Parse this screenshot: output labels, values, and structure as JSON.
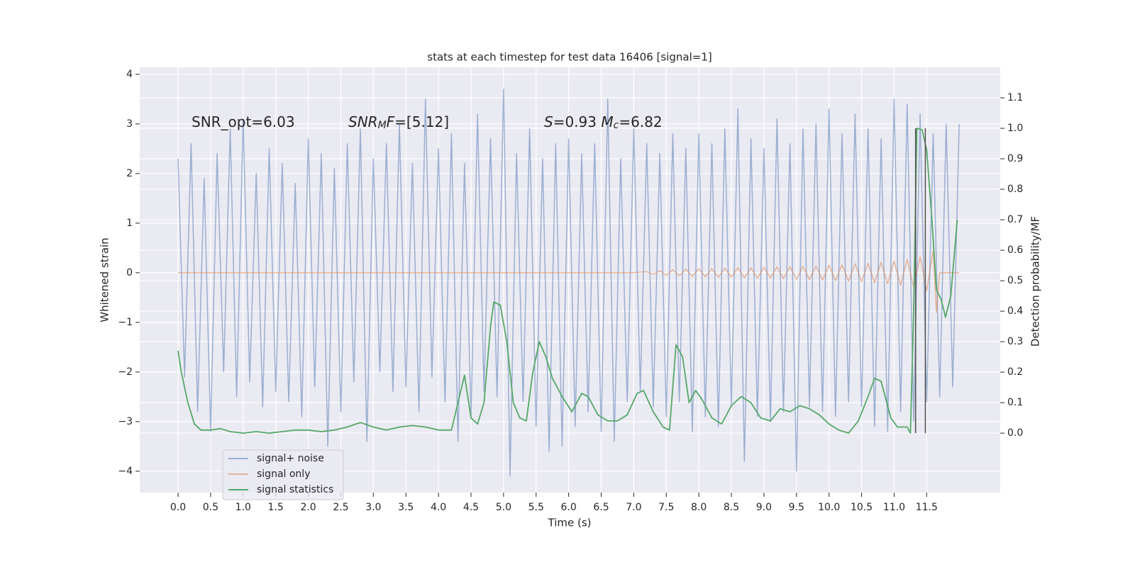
{
  "chart_data": {
    "type": "line",
    "title": "stats at each timestep for test data 16406 [signal=1]",
    "x_label": "Time (s)",
    "y_label": "Whitened strain",
    "y2_label": "Detection probability/MF",
    "xlim": [
      -0.589,
      12.63
    ],
    "ylim": [
      -4.43,
      4.14
    ],
    "y2lim": [
      -0.195,
      1.2
    ],
    "xticks": [
      {
        "value": 0,
        "label": "0.0"
      },
      0.5,
      {
        "value": 1,
        "label": "1.0"
      },
      1.5,
      {
        "value": 2,
        "label": "2.0"
      },
      2.5,
      {
        "value": 3,
        "label": "3.0"
      },
      3.5,
      {
        "value": 4,
        "label": "4.0"
      },
      4.5,
      {
        "value": 5,
        "label": "5.0"
      },
      5.5,
      {
        "value": 6,
        "label": "6.0"
      },
      6.5,
      {
        "value": 7,
        "label": "7.0"
      },
      7.5,
      {
        "value": 8,
        "label": "8.0"
      },
      8.5,
      {
        "value": 9,
        "label": "9.0"
      },
      9.5,
      {
        "value": 10,
        "label": "10.0"
      },
      10.5,
      {
        "value": 11,
        "label": "11.0"
      },
      11.5
    ],
    "yticks": [
      {
        "value": -4,
        "label": "−4"
      },
      {
        "value": -3,
        "label": "−3"
      },
      {
        "value": -2,
        "label": "−2"
      },
      {
        "value": -1,
        "label": "−1"
      },
      0,
      1,
      2,
      3,
      4
    ],
    "y2ticks": [
      {
        "value": 0,
        "label": "0.0"
      },
      0.1,
      0.2,
      0.3,
      0.4,
      0.5,
      0.6,
      0.7,
      0.8,
      0.9,
      {
        "value": 1,
        "label": "1.0"
      },
      1.1
    ],
    "grid": true,
    "legend": "lower left",
    "annotations": [
      [
        {
          "text": "SNR_opt=6.03",
          "style": "normal"
        }
      ],
      [
        {
          "text": "SNR",
          "style": "italic"
        },
        {
          "text": "M",
          "style": "italic-sub"
        },
        {
          "text": "F",
          "style": "italic"
        },
        {
          "text": "=[5.12]",
          "style": "normal"
        }
      ],
      [
        {
          "text": "S",
          "style": "italic"
        },
        {
          "text": "=0.93   ",
          "style": "normal"
        },
        {
          "text": "M",
          "style": "italic"
        },
        {
          "text": "c",
          "style": "italic-sub"
        },
        {
          "text": "=6.82",
          "style": "normal"
        }
      ]
    ],
    "vlines": [
      11.33,
      11.48
    ],
    "vline_span": [
      0,
      1
    ],
    "vline_color": "#555555",
    "series": [
      {
        "name": "signal+ noise",
        "color": "#4c72b0",
        "opacity": 0.5,
        "x": [
          0,
          0.1,
          0.2,
          0.3,
          0.4,
          0.5,
          0.6,
          0.7,
          0.8,
          0.9,
          1,
          1.1,
          1.2,
          1.3,
          1.4,
          1.5,
          1.6,
          1.7,
          1.8,
          1.9,
          2,
          2.1,
          2.2,
          2.3,
          2.4,
          2.5,
          2.6,
          2.7,
          2.8,
          2.9,
          3,
          3.1,
          3.2,
          3.3,
          3.4,
          3.5,
          3.6,
          3.7,
          3.8,
          3.9,
          4,
          4.1,
          4.2,
          4.3,
          4.4,
          4.5,
          4.6,
          4.7,
          4.8,
          4.9,
          5,
          5.1,
          5.2,
          5.3,
          5.4,
          5.5,
          5.6,
          5.7,
          5.8,
          5.9,
          6,
          6.1,
          6.2,
          6.3,
          6.4,
          6.5,
          6.6,
          6.7,
          6.8,
          6.9,
          7,
          7.1,
          7.2,
          7.3,
          7.4,
          7.5,
          7.6,
          7.7,
          7.8,
          7.9,
          8,
          8.1,
          8.2,
          8.3,
          8.4,
          8.5,
          8.6,
          8.7,
          8.8,
          8.9,
          9,
          9.1,
          9.2,
          9.3,
          9.4,
          9.5,
          9.6,
          9.7,
          9.8,
          9.9,
          10,
          10.1,
          10.2,
          10.3,
          10.4,
          10.5,
          10.6,
          10.7,
          10.8,
          10.9,
          11,
          11.1,
          11.2,
          11.3,
          11.4,
          11.5,
          11.6,
          11.7,
          11.8,
          11.9,
          12
        ],
        "values": [
          2.3,
          -2.1,
          2.6,
          -2.8,
          1.9,
          -3.2,
          2.4,
          -2.0,
          2.9,
          -2.5,
          3.1,
          -2.2,
          2.0,
          -2.7,
          2.5,
          -2.4,
          2.2,
          -2.6,
          1.8,
          -2.9,
          2.7,
          -2.3,
          2.4,
          -3.5,
          2.1,
          -2.8,
          2.6,
          -2.2,
          2.9,
          -3.4,
          2.3,
          -2.0,
          2.6,
          -2.4,
          3.0,
          -2.3,
          2.2,
          -2.8,
          3.5,
          -2.1,
          2.5,
          -2.6,
          2.8,
          -3.4,
          2.2,
          -2.9,
          3.2,
          -2.4,
          2.7,
          -2.5,
          3.7,
          -4.1,
          2.4,
          -2.6,
          2.9,
          -3.1,
          2.3,
          -3.6,
          2.6,
          -3.5,
          2.7,
          -3.1,
          2.4,
          -2.8,
          2.6,
          -3.2,
          3.5,
          -3.4,
          2.3,
          -2.6,
          2.9,
          -2.4,
          2.6,
          -2.7,
          2.4,
          -2.9,
          2.8,
          -2.6,
          2.5,
          -3.2,
          2.8,
          -2.9,
          2.6,
          -3.1,
          2.9,
          -2.7,
          3.3,
          -3.8,
          2.7,
          -2.9,
          2.5,
          -3.0,
          3.1,
          -2.8,
          2.6,
          -4.0,
          2.9,
          -2.7,
          3.0,
          -2.8,
          3.3,
          -2.9,
          2.8,
          -2.6,
          3.2,
          -2.7,
          2.9,
          -3.1,
          2.7,
          -3.2,
          3.5,
          -2.8,
          3.4,
          -3.0,
          3.2,
          -2.6,
          2.8,
          -2.5,
          3.0,
          -2.3,
          3.0
        ]
      },
      {
        "name": "signal only",
        "color": "#dd8452",
        "opacity": 0.55,
        "x": [
          0,
          7.0,
          7.2,
          7.3,
          7.4,
          7.5,
          7.6,
          7.7,
          7.8,
          7.9,
          8.0,
          8.1,
          8.2,
          8.3,
          8.4,
          8.5,
          8.6,
          8.7,
          8.8,
          8.9,
          9.0,
          9.1,
          9.2,
          9.3,
          9.4,
          9.5,
          9.6,
          9.7,
          9.8,
          9.9,
          10.0,
          10.1,
          10.2,
          10.3,
          10.4,
          10.5,
          10.6,
          10.7,
          10.8,
          10.9,
          11.0,
          11.1,
          11.2,
          11.3,
          11.4,
          11.5,
          11.6,
          11.65,
          11.7,
          12.0
        ],
        "values": [
          0,
          0,
          0.02,
          -0.03,
          0.04,
          -0.05,
          0.06,
          -0.06,
          0.07,
          -0.07,
          0.08,
          -0.08,
          0.08,
          -0.09,
          0.09,
          -0.09,
          0.1,
          -0.1,
          0.1,
          -0.11,
          0.11,
          -0.11,
          0.12,
          -0.12,
          0.12,
          -0.13,
          0.13,
          -0.14,
          0.14,
          -0.15,
          0.15,
          -0.16,
          0.16,
          -0.17,
          0.18,
          -0.18,
          0.19,
          -0.2,
          0.21,
          -0.22,
          0.23,
          -0.25,
          0.27,
          -0.29,
          0.32,
          -0.36,
          0.45,
          -0.8,
          0,
          0
        ]
      },
      {
        "name": "signal statistics",
        "color": "#55a868",
        "opacity": 1,
        "axis": "y2",
        "x": [
          0,
          0.05,
          0.15,
          0.25,
          0.35,
          0.5,
          0.65,
          0.8,
          1.0,
          1.2,
          1.4,
          1.6,
          1.8,
          2.0,
          2.2,
          2.4,
          2.6,
          2.8,
          3.0,
          3.2,
          3.4,
          3.6,
          3.8,
          4.0,
          4.2,
          4.3,
          4.4,
          4.5,
          4.6,
          4.7,
          4.8,
          4.85,
          4.95,
          5.05,
          5.15,
          5.25,
          5.35,
          5.45,
          5.55,
          5.65,
          5.75,
          5.9,
          6.05,
          6.2,
          6.3,
          6.45,
          6.6,
          6.75,
          6.9,
          7.05,
          7.15,
          7.3,
          7.45,
          7.55,
          7.65,
          7.75,
          7.85,
          7.95,
          8.05,
          8.2,
          8.35,
          8.5,
          8.65,
          8.8,
          8.95,
          9.1,
          9.25,
          9.4,
          9.55,
          9.7,
          9.85,
          10.0,
          10.15,
          10.3,
          10.45,
          10.6,
          10.7,
          10.8,
          10.95,
          11.05,
          11.2,
          11.25,
          11.3,
          11.35,
          11.43,
          11.5,
          11.58,
          11.65,
          11.72,
          11.79,
          11.87,
          11.97
        ],
        "values": [
          0.27,
          0.2,
          0.1,
          0.03,
          0.01,
          0.01,
          0.015,
          0.005,
          0,
          0.005,
          0,
          0.005,
          0.01,
          0.01,
          0.005,
          0.01,
          0.02,
          0.035,
          0.02,
          0.01,
          0.02,
          0.025,
          0.02,
          0.01,
          0.01,
          0.1,
          0.19,
          0.05,
          0.03,
          0.1,
          0.35,
          0.43,
          0.42,
          0.3,
          0.1,
          0.05,
          0.04,
          0.2,
          0.3,
          0.25,
          0.18,
          0.12,
          0.07,
          0.13,
          0.12,
          0.06,
          0.04,
          0.04,
          0.06,
          0.13,
          0.14,
          0.07,
          0.02,
          0.01,
          0.29,
          0.25,
          0.1,
          0.14,
          0.11,
          0.05,
          0.03,
          0.09,
          0.12,
          0.1,
          0.05,
          0.04,
          0.08,
          0.07,
          0.09,
          0.08,
          0.06,
          0.03,
          0.01,
          0,
          0.04,
          0.12,
          0.18,
          0.17,
          0.05,
          0.02,
          0.02,
          0,
          0.4,
          1.0,
          0.995,
          0.93,
          0.7,
          0.47,
          0.44,
          0.38,
          0.45,
          0.7
        ]
      }
    ]
  }
}
